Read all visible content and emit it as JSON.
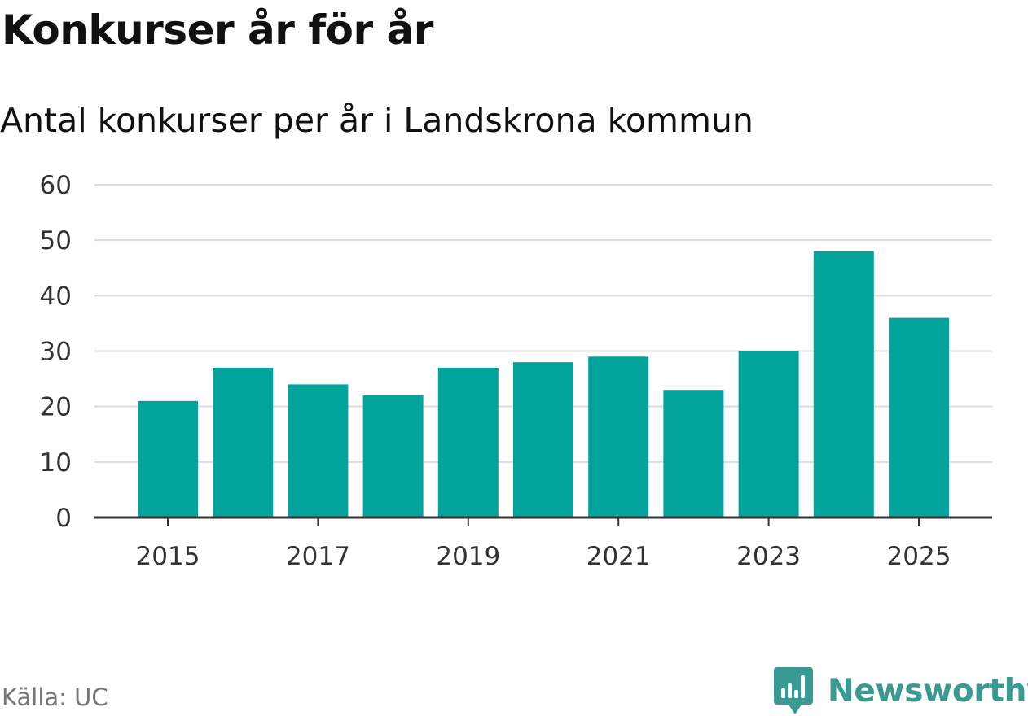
{
  "header": {
    "title": "Konkurser år för år",
    "subtitle": "Antal konkurser per år i Landskrona kommun"
  },
  "footer": {
    "source": "Källa: UC",
    "brand": "Newsworthy"
  },
  "colors": {
    "bar": "#02a39b",
    "grid": "#dddddd",
    "axis": "#333333",
    "brand": "#3a9a93"
  },
  "chart_data": {
    "type": "bar",
    "title": "Konkurser år för år",
    "subtitle": "Antal konkurser per år i Landskrona kommun",
    "xlabel": "",
    "ylabel": "",
    "categories": [
      "2015",
      "2016",
      "2017",
      "2018",
      "2019",
      "2020",
      "2021",
      "2022",
      "2023",
      "2024",
      "2025"
    ],
    "values": [
      21,
      27,
      24,
      22,
      27,
      28,
      29,
      23,
      30,
      48,
      36
    ],
    "x_tick_labels": [
      "2015",
      "2017",
      "2019",
      "2021",
      "2023",
      "2025"
    ],
    "y_ticks": [
      0,
      10,
      20,
      30,
      40,
      50,
      60
    ],
    "ylim": [
      0,
      60
    ],
    "grid": true,
    "legend": "none"
  }
}
